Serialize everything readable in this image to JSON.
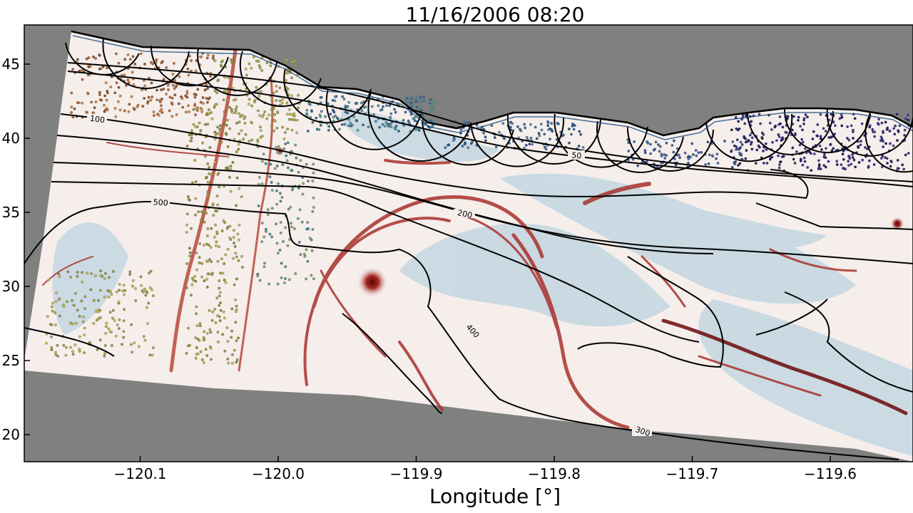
{
  "title": "11/16/2006 08:20",
  "xlabel": "Longitude [°]",
  "colors": {
    "land_mask": "#808080",
    "field_positive": "#7f0a0a",
    "field_negative": "#2f6f99",
    "field_neutral": "#f7f2ef",
    "contour": "#000000"
  },
  "map_data": {
    "type": "map",
    "x_ticks": [
      -120.1,
      -120.0,
      -119.9,
      -119.8,
      -119.7,
      -119.6
    ],
    "x_tick_labels": [
      "−120.1",
      "−120.0",
      "−119.9",
      "−119.8",
      "−119.7",
      "−119.6"
    ],
    "y_ticks": [
      20,
      25,
      30,
      35,
      40,
      45
    ],
    "y_tick_labels": [
      "20",
      "25",
      "30",
      "35",
      "40",
      "45"
    ],
    "contour_labels": [
      "100",
      "50",
      "500",
      "200",
      "400",
      "300"
    ]
  }
}
